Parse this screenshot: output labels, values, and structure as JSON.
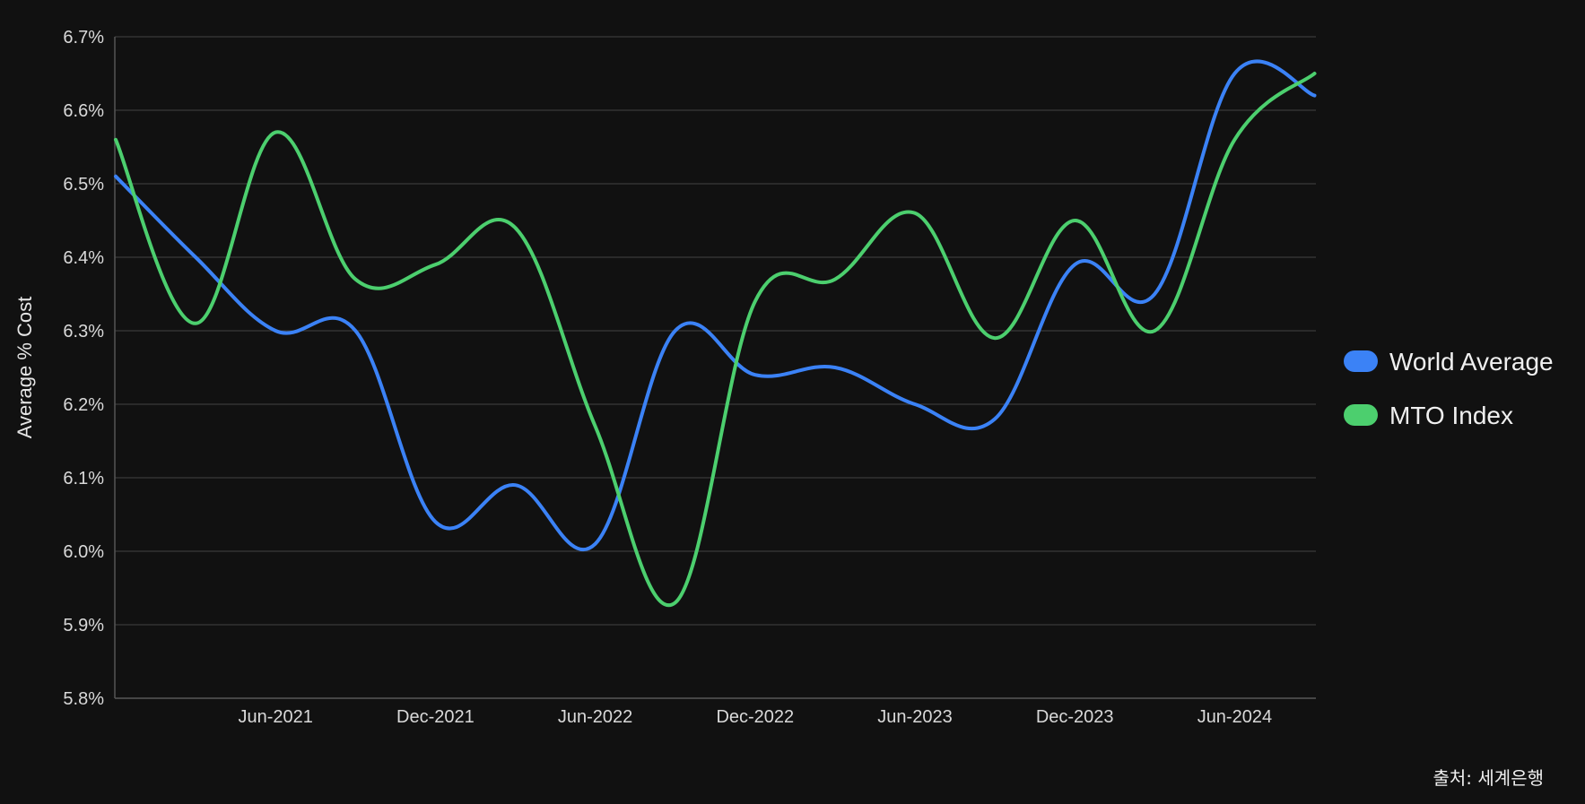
{
  "chart_data": {
    "type": "line",
    "ylabel": "Average % Cost",
    "ylim": [
      5.8,
      6.7
    ],
    "yticks": [
      "5.8%",
      "5.9%",
      "6.0%",
      "6.1%",
      "6.2%",
      "6.3%",
      "6.4%",
      "6.5%",
      "6.6%",
      "6.7%"
    ],
    "ytick_values": [
      5.8,
      5.9,
      6.0,
      6.1,
      6.2,
      6.3,
      6.4,
      6.5,
      6.6,
      6.7
    ],
    "xticks": [
      "Jun-2021",
      "Dec-2021",
      "Jun-2022",
      "Dec-2022",
      "Jun-2023",
      "Dec-2023",
      "Jun-2024"
    ],
    "x": [
      "Dec-2020",
      "Mar-2021",
      "Jun-2021",
      "Sep-2021",
      "Dec-2021",
      "Mar-2022",
      "Jun-2022",
      "Sep-2022",
      "Dec-2022",
      "Mar-2023",
      "Jun-2023",
      "Sep-2023",
      "Dec-2023",
      "Mar-2024",
      "Jun-2024",
      "Sep-2024"
    ],
    "grid": true,
    "legend_position": "right",
    "series": [
      {
        "name": "World Average",
        "color": "#3b82f6",
        "values": [
          6.51,
          6.4,
          6.3,
          6.3,
          6.04,
          6.09,
          6.01,
          6.3,
          6.24,
          6.25,
          6.2,
          6.18,
          6.39,
          6.35,
          6.65,
          6.62
        ]
      },
      {
        "name": "MTO Index",
        "color": "#4ccf6e",
        "values": [
          6.56,
          6.31,
          6.57,
          6.37,
          6.39,
          6.44,
          6.17,
          5.93,
          6.34,
          6.37,
          6.46,
          6.29,
          6.45,
          6.3,
          6.56,
          6.65
        ]
      }
    ]
  },
  "source": "출처: 세계은행"
}
